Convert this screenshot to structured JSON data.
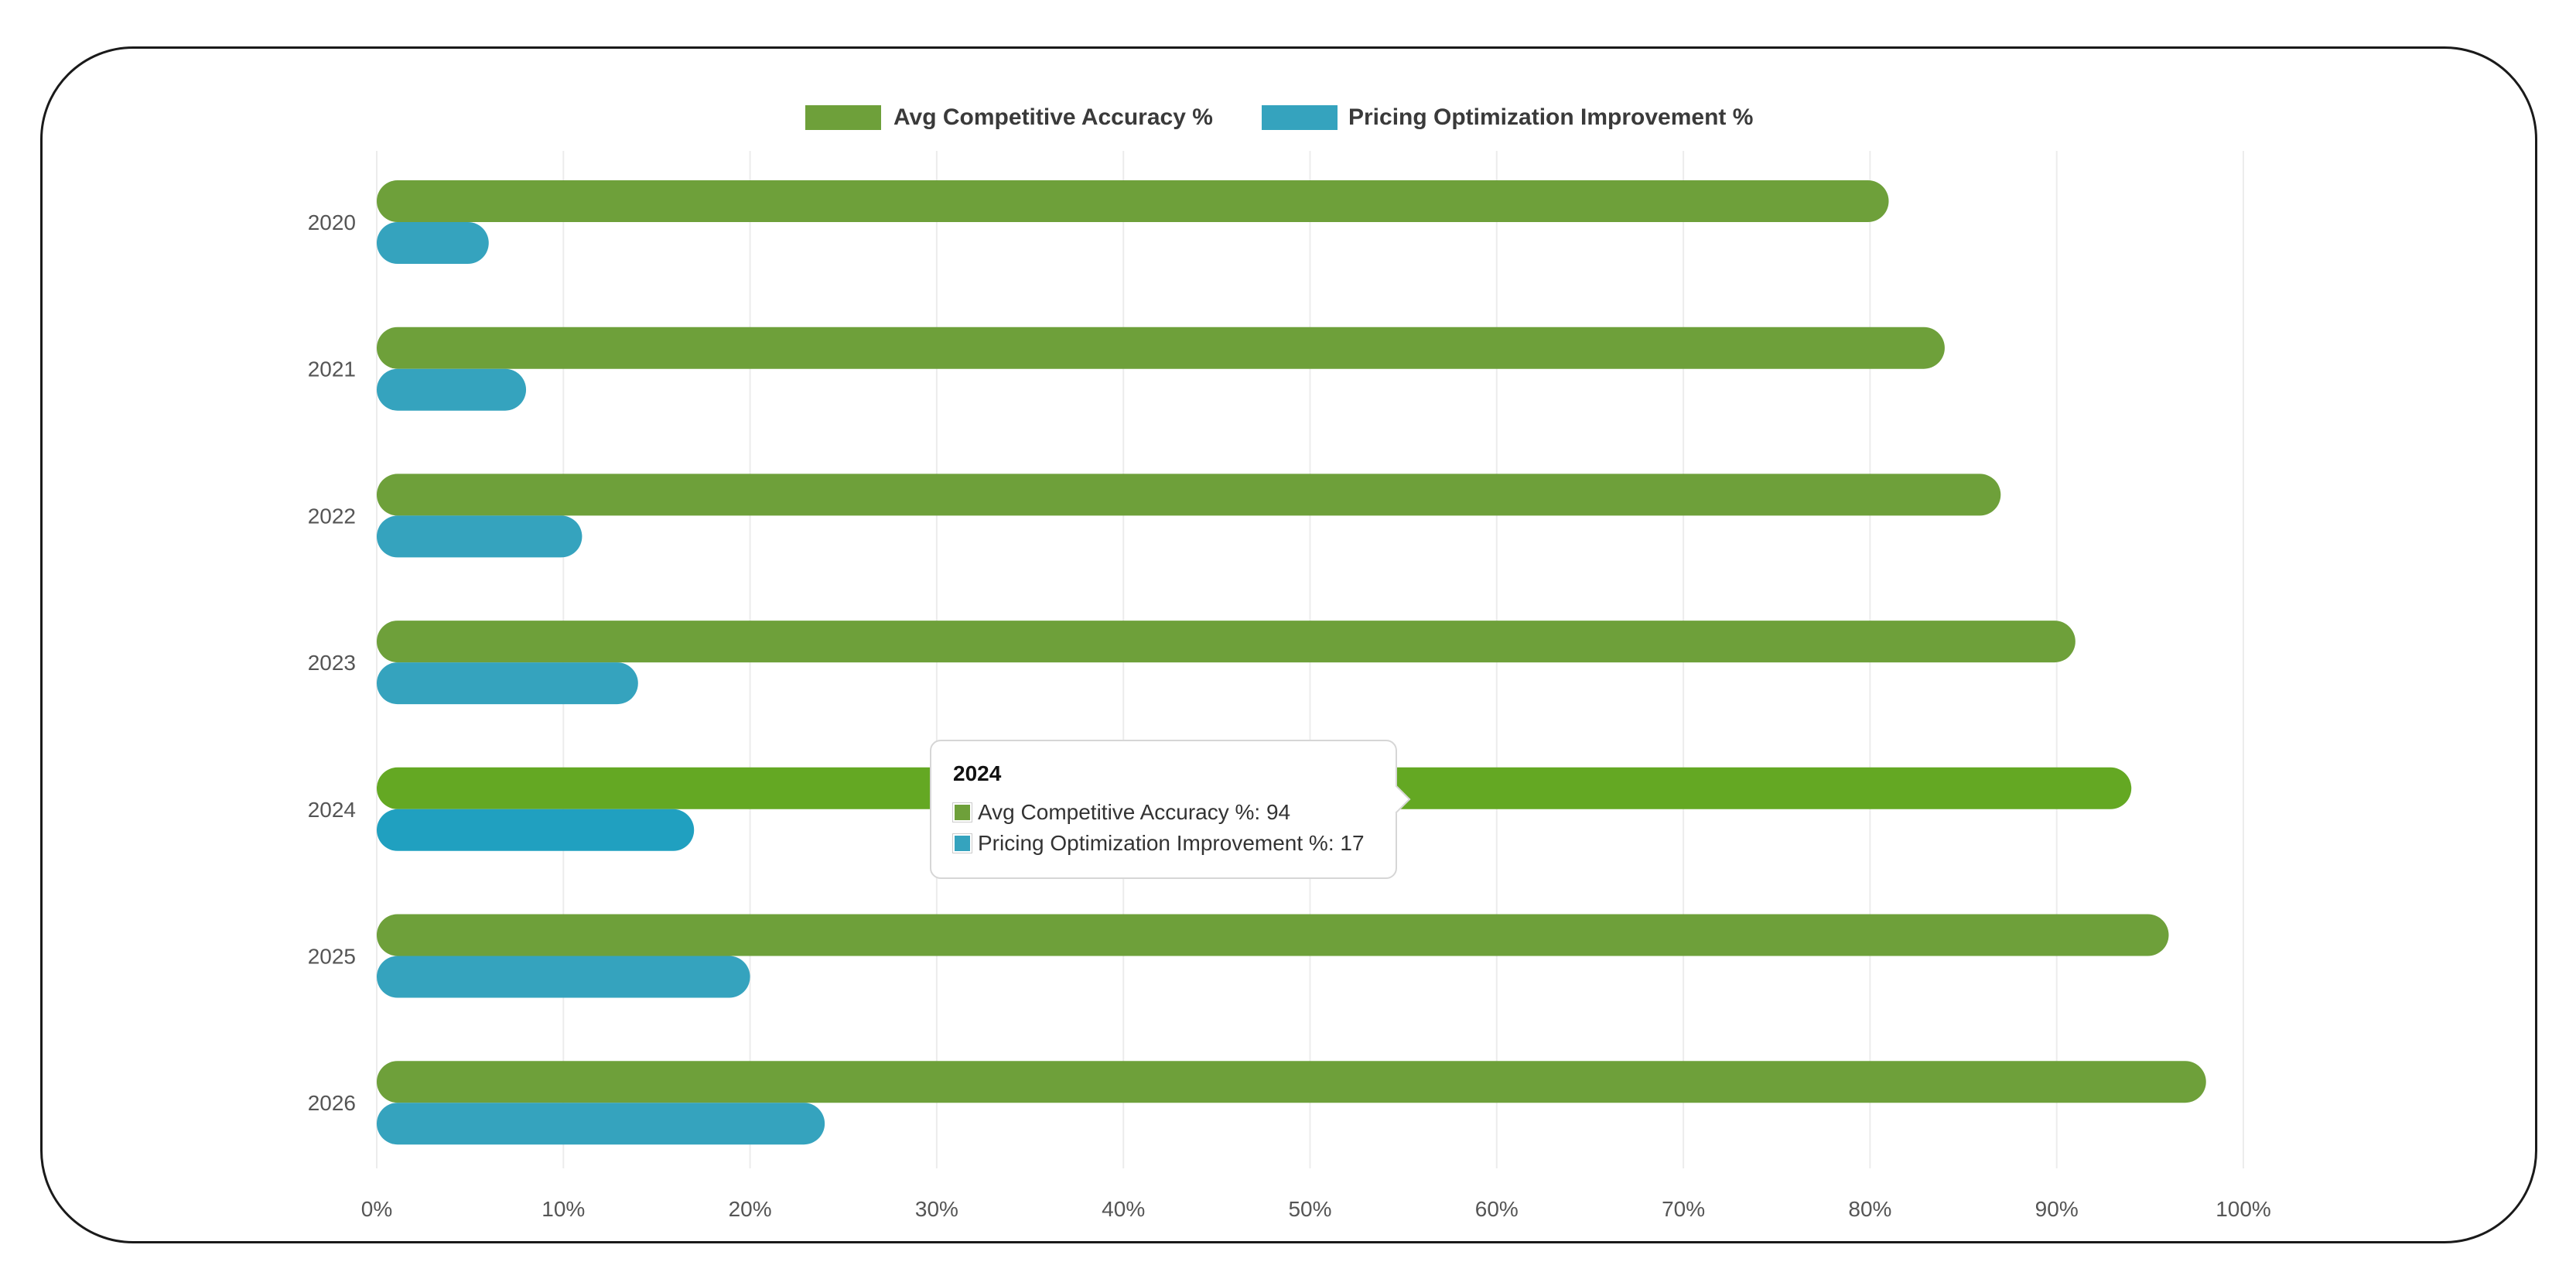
{
  "chart_data": {
    "type": "bar",
    "orientation": "horizontal",
    "categories": [
      "2020",
      "2021",
      "2022",
      "2023",
      "2024",
      "2025",
      "2026"
    ],
    "series": [
      {
        "name": "Avg Competitive Accuracy %",
        "color": "#6ea03a",
        "values": [
          81,
          84,
          87,
          91,
          94,
          96,
          98
        ]
      },
      {
        "name": "Pricing Optimization Improvement %",
        "color": "#35a3be",
        "values": [
          6,
          8,
          11,
          14,
          17,
          20,
          24
        ]
      }
    ],
    "xlim": [
      0,
      100
    ],
    "x_ticks": [
      "0%",
      "10%",
      "20%",
      "30%",
      "40%",
      "50%",
      "60%",
      "70%",
      "80%",
      "90%",
      "100%"
    ],
    "grid": true,
    "legend": "top-center",
    "highlight_category": "2024",
    "highlight_colors": [
      "#64a823",
      "#20a0c0"
    ]
  },
  "tooltip": {
    "title": "2024",
    "rows": [
      {
        "label": "Avg Competitive Accuracy %: 94",
        "color": "#6ea03a"
      },
      {
        "label": "Pricing Optimization Improvement %: 17",
        "color": "#35a3be"
      }
    ]
  }
}
